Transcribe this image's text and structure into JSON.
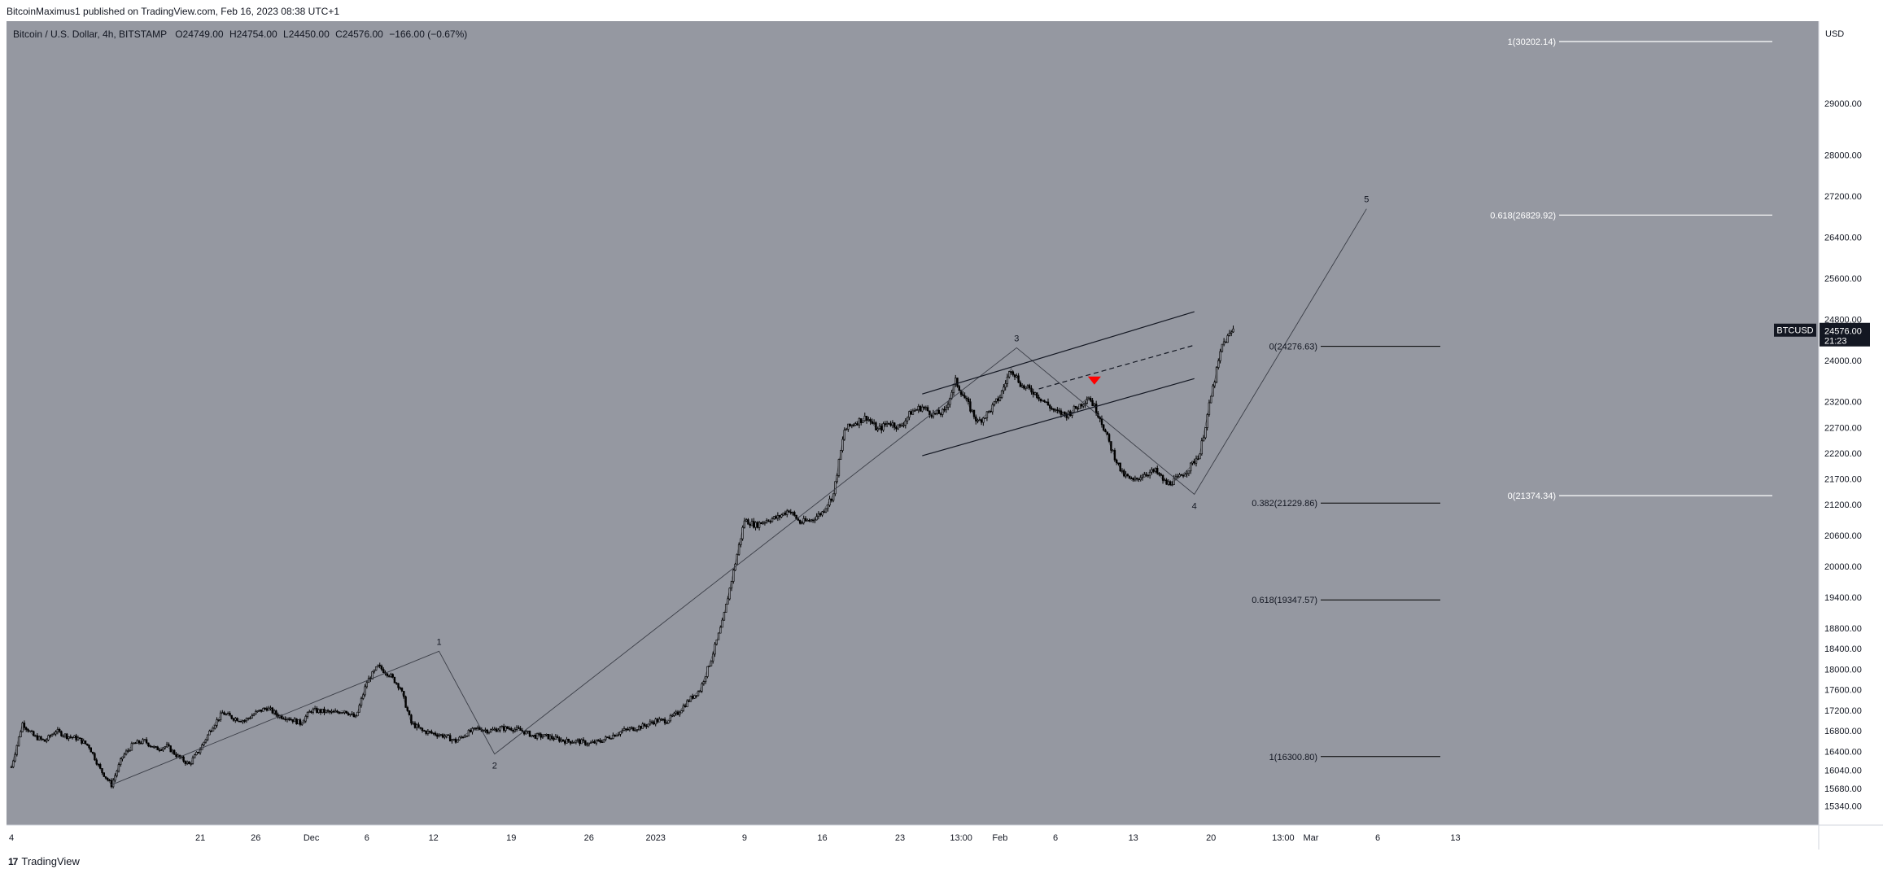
{
  "header": {
    "publisher": "BitcoinMaximus1 published on TradingView.com, Feb 16, 2023 08:38 UTC+1"
  },
  "symbol": {
    "name": "Bitcoin / U.S. Dollar, 4h, BITSTAMP",
    "o_label": "O",
    "o": "24749.00",
    "h_label": "H",
    "h": "24754.00",
    "l_label": "L",
    "l": "24450.00",
    "c_label": "C",
    "c": "24576.00",
    "change": "−166.00 (−0.67%)"
  },
  "footer": {
    "brand": "TradingView",
    "logo": "17"
  },
  "colors": {
    "pane_bg": "#9598a1",
    "candle": "#000000",
    "fib_upper": "#ffffff",
    "fib_lower": "#000000",
    "marker": "#ff0000",
    "price_tag_bg": "#131722",
    "price_tag_fg": "#ffffff"
  },
  "chart_data": {
    "type": "line",
    "symbol": "BTCUSD",
    "interval": "4h",
    "currency": "USD",
    "ylim": [
      15000,
      30600
    ],
    "y_ticks": [
      15340,
      15680,
      16040,
      16400,
      16800,
      17200,
      17600,
      18000,
      18400,
      18800,
      19400,
      20000,
      20600,
      21200,
      21700,
      22200,
      22700,
      23200,
      24000,
      24800,
      25600,
      26400,
      27200,
      28000,
      29000
    ],
    "y_tick_labels": [
      "15340.00",
      "15680.00",
      "16040.00",
      "16400.00",
      "16800.00",
      "17200.00",
      "17600.00",
      "18000.00",
      "18400.00",
      "18800.00",
      "19400.00",
      "20000.00",
      "20600.00",
      "21200.00",
      "21700.00",
      "22200.00",
      "22700.00",
      "23200.00",
      "24000.00",
      "24800.00",
      "25600.00",
      "26400.00",
      "27200.00",
      "28000.00",
      "29000.00"
    ],
    "x_axis_labels": [
      {
        "day": 0,
        "label": "4"
      },
      {
        "day": 17,
        "label": "21"
      },
      {
        "day": 22,
        "label": "26"
      },
      {
        "day": 27,
        "label": "Dec"
      },
      {
        "day": 32,
        "label": "6"
      },
      {
        "day": 38,
        "label": "12"
      },
      {
        "day": 45,
        "label": "19"
      },
      {
        "day": 52,
        "label": "26"
      },
      {
        "day": 58,
        "label": "2023"
      },
      {
        "day": 66,
        "label": "9"
      },
      {
        "day": 73,
        "label": "16"
      },
      {
        "day": 80,
        "label": "23"
      },
      {
        "day": 85.5,
        "label": "13:00"
      },
      {
        "day": 89,
        "label": "Feb"
      },
      {
        "day": 94,
        "label": "6"
      },
      {
        "day": 101,
        "label": "13"
      },
      {
        "day": 108,
        "label": "20"
      },
      {
        "day": 114.5,
        "label": "13:00"
      },
      {
        "day": 117,
        "label": "Mar"
      },
      {
        "day": 123,
        "label": "6"
      },
      {
        "day": 130,
        "label": "13"
      }
    ],
    "price_series": [
      [
        0,
        16100
      ],
      [
        1,
        16950
      ],
      [
        2,
        16700
      ],
      [
        3,
        16600
      ],
      [
        4,
        16800
      ],
      [
        5,
        16700
      ],
      [
        6,
        16650
      ],
      [
        7,
        16500
      ],
      [
        8,
        16050
      ],
      [
        9,
        15750
      ],
      [
        10,
        16300
      ],
      [
        11,
        16550
      ],
      [
        12,
        16600
      ],
      [
        13,
        16450
      ],
      [
        14,
        16500
      ],
      [
        15,
        16300
      ],
      [
        16,
        16150
      ],
      [
        17,
        16450
      ],
      [
        18,
        16850
      ],
      [
        19,
        17150
      ],
      [
        20,
        17050
      ],
      [
        21,
        17000
      ],
      [
        22,
        17150
      ],
      [
        23,
        17250
      ],
      [
        24,
        17100
      ],
      [
        25,
        17050
      ],
      [
        26,
        16950
      ],
      [
        27,
        17200
      ],
      [
        28,
        17180
      ],
      [
        29,
        17150
      ],
      [
        30,
        17200
      ],
      [
        31,
        17050
      ],
      [
        32,
        17750
      ],
      [
        33,
        18050
      ],
      [
        34,
        17900
      ],
      [
        35,
        17650
      ],
      [
        36,
        16950
      ],
      [
        37,
        16800
      ],
      [
        38,
        16750
      ],
      [
        39,
        16700
      ],
      [
        40,
        16600
      ],
      [
        41,
        16750
      ],
      [
        42,
        16850
      ],
      [
        43,
        16800
      ],
      [
        44,
        16850
      ],
      [
        45,
        16850
      ],
      [
        46,
        16800
      ],
      [
        47,
        16700
      ],
      [
        48,
        16700
      ],
      [
        49,
        16650
      ],
      [
        50,
        16600
      ],
      [
        51,
        16600
      ],
      [
        52,
        16550
      ],
      [
        53,
        16600
      ],
      [
        54,
        16700
      ],
      [
        55,
        16800
      ],
      [
        56,
        16850
      ],
      [
        57,
        16900
      ],
      [
        58,
        17000
      ],
      [
        59,
        17000
      ],
      [
        60,
        17150
      ],
      [
        61,
        17400
      ],
      [
        62,
        17600
      ],
      [
        63,
        18200
      ],
      [
        64,
        18900
      ],
      [
        65,
        19900
      ],
      [
        66,
        20900
      ],
      [
        67,
        20800
      ],
      [
        68,
        20900
      ],
      [
        69,
        20950
      ],
      [
        70,
        21100
      ],
      [
        71,
        20850
      ],
      [
        72,
        20900
      ],
      [
        73,
        21050
      ],
      [
        74,
        21400
      ],
      [
        75,
        22650
      ],
      [
        76,
        22800
      ],
      [
        77,
        22900
      ],
      [
        78,
        22650
      ],
      [
        79,
        22800
      ],
      [
        80,
        22700
      ],
      [
        81,
        23000
      ],
      [
        82,
        23100
      ],
      [
        83,
        22950
      ],
      [
        84,
        23000
      ],
      [
        85,
        23600
      ],
      [
        86,
        23200
      ],
      [
        87,
        22800
      ],
      [
        88,
        23000
      ],
      [
        89,
        23300
      ],
      [
        90,
        23850
      ],
      [
        91,
        23500
      ],
      [
        92,
        23400
      ],
      [
        93,
        23200
      ],
      [
        94,
        23000
      ],
      [
        95,
        22950
      ],
      [
        96,
        23100
      ],
      [
        97,
        23300
      ],
      [
        98,
        22900
      ],
      [
        99,
        22300
      ],
      [
        100,
        21800
      ],
      [
        101,
        21650
      ],
      [
        102,
        21800
      ],
      [
        103,
        21850
      ],
      [
        104,
        21600
      ],
      [
        105,
        21700
      ],
      [
        106,
        21900
      ],
      [
        107,
        22200
      ],
      [
        108,
        23300
      ],
      [
        109,
        24300
      ],
      [
        110,
        24600
      ]
    ],
    "wave_path": [
      {
        "day": 9,
        "price": 15750,
        "label": ""
      },
      {
        "day": 38.5,
        "price": 18350,
        "label": "1"
      },
      {
        "day": 43.5,
        "price": 16350,
        "label": "2"
      },
      {
        "day": 90.5,
        "price": 24250,
        "label": "3"
      },
      {
        "day": 106.5,
        "price": 21400,
        "label": "4"
      },
      {
        "day": 122,
        "price": 26950,
        "label": "5"
      }
    ],
    "channel": {
      "upper": [
        [
          82,
          23350
        ],
        [
          106.5,
          24950
        ]
      ],
      "lower": [
        [
          82,
          22150
        ],
        [
          106.5,
          23650
        ]
      ],
      "mid_dashed": [
        [
          92.5,
          23450
        ],
        [
          106.5,
          24300
        ]
      ]
    },
    "fib_lower_set": [
      {
        "price": 24276.63,
        "label": "0(24276.63)"
      },
      {
        "price": 21229.86,
        "label": "0.382(21229.86)"
      },
      {
        "price": 19347.57,
        "label": "0.618(19347.57)"
      },
      {
        "price": 16300.8,
        "label": "1(16300.80)"
      }
    ],
    "fib_upper_set": [
      {
        "price": 30202.14,
        "label": "1(30202.14)"
      },
      {
        "price": 26829.92,
        "label": "0.618(26829.92)"
      },
      {
        "price": 21374.34,
        "label": "0(21374.34)"
      }
    ],
    "sell_marker": {
      "day": 97.5,
      "price": 23500
    },
    "last_price": {
      "value": "24576.00",
      "countdown": "21:23",
      "symbol_tag": "BTCUSD"
    }
  }
}
